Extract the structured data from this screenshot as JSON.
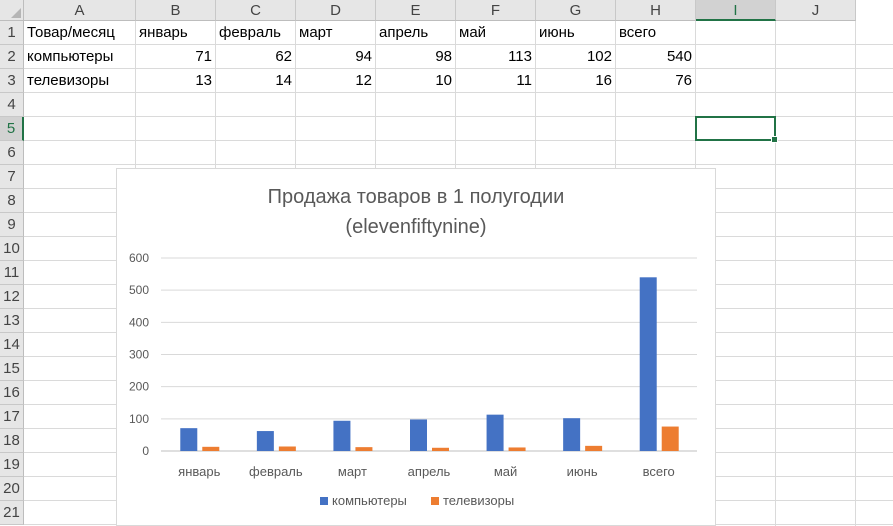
{
  "sheet": {
    "columns": [
      "A",
      "B",
      "C",
      "D",
      "E",
      "F",
      "G",
      "H",
      "I",
      "J"
    ],
    "rows": [
      "1",
      "2",
      "3",
      "4",
      "5",
      "6",
      "7",
      "8",
      "9",
      "10",
      "11",
      "12",
      "13",
      "14",
      "15",
      "16",
      "17",
      "18",
      "19",
      "20",
      "21"
    ],
    "active_cell": "I5",
    "cells": {
      "A1": "Товар/месяц",
      "B1": "январь",
      "C1": "февраль",
      "D1": "март",
      "E1": "апрель",
      "F1": "май",
      "G1": "июнь",
      "H1": "всего",
      "A2": "компьютеры",
      "B2": "71",
      "C2": "62",
      "D2": "94",
      "E2": "98",
      "F2": "113",
      "G2": "102",
      "H2": "540",
      "A3": "телевизоры",
      "B3": "13",
      "C3": "14",
      "D3": "12",
      "E3": "10",
      "F3": "11",
      "G3": "16",
      "H3": "76"
    }
  },
  "colors": {
    "series1": "#4472c4",
    "series2": "#ed7d31",
    "excel_green": "#217346"
  },
  "chart_data": {
    "type": "bar",
    "title": "Продажа товаров в 1 полугодии (elevenfiftynine)",
    "title_lines": [
      "Продажа товаров в 1 полугодии",
      "(elevenfiftynine)"
    ],
    "categories": [
      "январь",
      "февраль",
      "март",
      "апрель",
      "май",
      "июнь",
      "всего"
    ],
    "series": [
      {
        "name": "компьютеры",
        "values": [
          71,
          62,
          94,
          98,
          113,
          102,
          540
        ]
      },
      {
        "name": "телевизоры",
        "values": [
          13,
          14,
          12,
          10,
          11,
          16,
          76
        ]
      }
    ],
    "ylim": [
      0,
      600
    ],
    "yticks": [
      0,
      100,
      200,
      300,
      400,
      500,
      600
    ],
    "grid": true,
    "legend": "bottom"
  }
}
